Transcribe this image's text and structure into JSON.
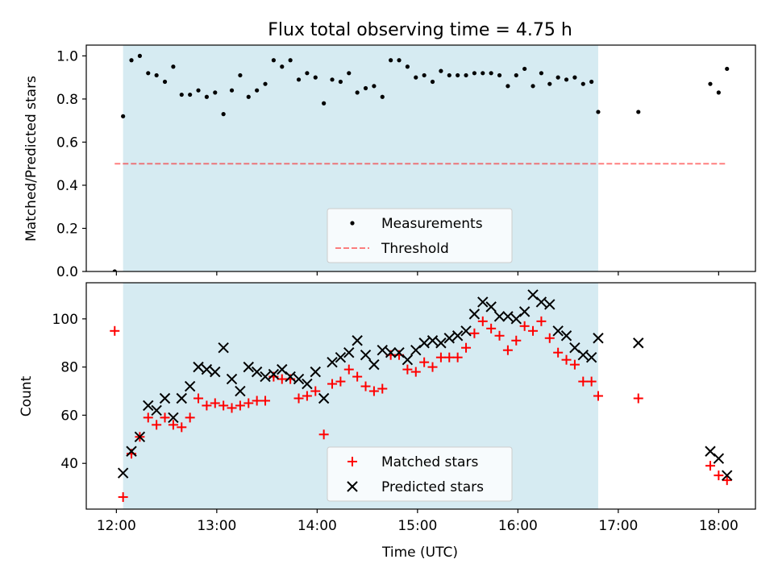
{
  "title": "Flux total observing time = 4.75 h",
  "colors": {
    "shade": "#add8e6",
    "measurements": "#000000",
    "threshold": "#ff0000",
    "matched": "#ff0000",
    "predicted": "#000000"
  },
  "chart_data": [
    {
      "type": "scatter",
      "ylabel": "Matched/Predicted stars",
      "ylim": [
        0,
        1.05
      ],
      "yticks": [
        "0.0",
        "0.2",
        "0.4",
        "0.6",
        "0.8",
        "1.0"
      ],
      "xlim": [
        "11:42",
        "18:22"
      ],
      "xticks": [
        "12:00",
        "13:00",
        "14:00",
        "15:00",
        "16:00",
        "17:00",
        "18:00"
      ],
      "shaded_span": [
        "12:04",
        "16:48"
      ],
      "legend": {
        "placement": "lower center",
        "entries": [
          "Measurements",
          "Threshold"
        ]
      },
      "threshold": {
        "name": "Threshold",
        "y": 0.5,
        "x": [
          "11:59",
          "18:05"
        ]
      },
      "series": [
        {
          "name": "Measurements",
          "marker": "dot",
          "points": [
            [
              "11:59",
              0.0
            ],
            [
              "12:04",
              0.72
            ],
            [
              "12:09",
              0.98
            ],
            [
              "12:14",
              1.0
            ],
            [
              "12:19",
              0.92
            ],
            [
              "12:24",
              0.91
            ],
            [
              "12:29",
              0.88
            ],
            [
              "12:34",
              0.95
            ],
            [
              "12:39",
              0.82
            ],
            [
              "12:44",
              0.82
            ],
            [
              "12:49",
              0.84
            ],
            [
              "12:54",
              0.81
            ],
            [
              "12:59",
              0.83
            ],
            [
              "13:04",
              0.73
            ],
            [
              "13:09",
              0.84
            ],
            [
              "13:14",
              0.91
            ],
            [
              "13:19",
              0.81
            ],
            [
              "13:24",
              0.84
            ],
            [
              "13:29",
              0.87
            ],
            [
              "13:34",
              0.98
            ],
            [
              "13:39",
              0.95
            ],
            [
              "13:44",
              0.98
            ],
            [
              "13:49",
              0.89
            ],
            [
              "13:54",
              0.92
            ],
            [
              "13:59",
              0.9
            ],
            [
              "14:04",
              0.78
            ],
            [
              "14:09",
              0.89
            ],
            [
              "14:14",
              0.88
            ],
            [
              "14:19",
              0.92
            ],
            [
              "14:24",
              0.83
            ],
            [
              "14:29",
              0.85
            ],
            [
              "14:34",
              0.86
            ],
            [
              "14:39",
              0.81
            ],
            [
              "14:44",
              0.98
            ],
            [
              "14:49",
              0.98
            ],
            [
              "14:54",
              0.95
            ],
            [
              "14:59",
              0.9
            ],
            [
              "15:04",
              0.91
            ],
            [
              "15:09",
              0.88
            ],
            [
              "15:14",
              0.93
            ],
            [
              "15:19",
              0.91
            ],
            [
              "15:24",
              0.91
            ],
            [
              "15:29",
              0.91
            ],
            [
              "15:34",
              0.92
            ],
            [
              "15:39",
              0.92
            ],
            [
              "15:44",
              0.92
            ],
            [
              "15:49",
              0.91
            ],
            [
              "15:54",
              0.86
            ],
            [
              "15:59",
              0.91
            ],
            [
              "16:04",
              0.94
            ],
            [
              "16:09",
              0.86
            ],
            [
              "16:14",
              0.92
            ],
            [
              "16:19",
              0.87
            ],
            [
              "16:24",
              0.9
            ],
            [
              "16:29",
              0.89
            ],
            [
              "16:34",
              0.9
            ],
            [
              "16:39",
              0.87
            ],
            [
              "16:44",
              0.88
            ],
            [
              "16:48",
              0.74
            ],
            [
              "17:12",
              0.74
            ],
            [
              "17:55",
              0.87
            ],
            [
              "18:00",
              0.83
            ],
            [
              "18:05",
              0.94
            ]
          ]
        }
      ]
    },
    {
      "type": "scatter",
      "ylabel": "Count",
      "xlabel": "Time (UTC)",
      "ylim": [
        21,
        115
      ],
      "yticks": [
        "40",
        "60",
        "80",
        "100"
      ],
      "xlim": [
        "11:42",
        "18:22"
      ],
      "xticks": [
        "12:00",
        "13:00",
        "14:00",
        "15:00",
        "16:00",
        "17:00",
        "18:00"
      ],
      "shaded_span": [
        "12:04",
        "16:48"
      ],
      "legend": {
        "placement": "lower center",
        "entries": [
          "Matched stars",
          "Predicted stars"
        ]
      },
      "series": [
        {
          "name": "Matched stars",
          "marker": "plus",
          "points": [
            [
              "11:59",
              95
            ],
            [
              "12:04",
              26
            ],
            [
              "12:09",
              44
            ],
            [
              "12:14",
              51
            ],
            [
              "12:19",
              59
            ],
            [
              "12:24",
              56
            ],
            [
              "12:29",
              59
            ],
            [
              "12:34",
              56
            ],
            [
              "12:39",
              55
            ],
            [
              "12:44",
              59
            ],
            [
              "12:49",
              67
            ],
            [
              "12:54",
              64
            ],
            [
              "12:59",
              65
            ],
            [
              "13:04",
              64
            ],
            [
              "13:09",
              63
            ],
            [
              "13:14",
              64
            ],
            [
              "13:19",
              65
            ],
            [
              "13:24",
              66
            ],
            [
              "13:29",
              66
            ],
            [
              "13:34",
              76
            ],
            [
              "13:39",
              75
            ],
            [
              "13:44",
              75
            ],
            [
              "13:49",
              67
            ],
            [
              "13:54",
              68
            ],
            [
              "13:59",
              70
            ],
            [
              "14:04",
              52
            ],
            [
              "14:09",
              73
            ],
            [
              "14:14",
              74
            ],
            [
              "14:19",
              79
            ],
            [
              "14:24",
              76
            ],
            [
              "14:29",
              72
            ],
            [
              "14:34",
              70
            ],
            [
              "14:39",
              71
            ],
            [
              "14:44",
              85
            ],
            [
              "14:49",
              85
            ],
            [
              "14:54",
              79
            ],
            [
              "14:59",
              78
            ],
            [
              "15:04",
              82
            ],
            [
              "15:09",
              80
            ],
            [
              "15:14",
              84
            ],
            [
              "15:19",
              84
            ],
            [
              "15:24",
              84
            ],
            [
              "15:29",
              88
            ],
            [
              "15:34",
              94
            ],
            [
              "15:39",
              99
            ],
            [
              "15:44",
              96
            ],
            [
              "15:49",
              93
            ],
            [
              "15:54",
              87
            ],
            [
              "15:59",
              91
            ],
            [
              "16:04",
              97
            ],
            [
              "16:09",
              95
            ],
            [
              "16:14",
              99
            ],
            [
              "16:19",
              92
            ],
            [
              "16:24",
              86
            ],
            [
              "16:29",
              83
            ],
            [
              "16:34",
              81
            ],
            [
              "16:39",
              74
            ],
            [
              "16:44",
              74
            ],
            [
              "16:48",
              68
            ],
            [
              "17:12",
              67
            ],
            [
              "17:55",
              39
            ],
            [
              "18:00",
              35
            ],
            [
              "18:05",
              33
            ]
          ]
        },
        {
          "name": "Predicted stars",
          "marker": "x",
          "points": [
            [
              "12:04",
              36
            ],
            [
              "12:09",
              45
            ],
            [
              "12:14",
              51
            ],
            [
              "12:19",
              64
            ],
            [
              "12:24",
              62
            ],
            [
              "12:29",
              67
            ],
            [
              "12:34",
              59
            ],
            [
              "12:39",
              67
            ],
            [
              "12:44",
              72
            ],
            [
              "12:49",
              80
            ],
            [
              "12:54",
              79
            ],
            [
              "12:59",
              78
            ],
            [
              "13:04",
              88
            ],
            [
              "13:09",
              75
            ],
            [
              "13:14",
              70
            ],
            [
              "13:19",
              80
            ],
            [
              "13:24",
              78
            ],
            [
              "13:29",
              76
            ],
            [
              "13:34",
              77
            ],
            [
              "13:39",
              79
            ],
            [
              "13:44",
              76
            ],
            [
              "13:49",
              75
            ],
            [
              "13:54",
              73
            ],
            [
              "13:59",
              78
            ],
            [
              "14:04",
              67
            ],
            [
              "14:09",
              82
            ],
            [
              "14:14",
              84
            ],
            [
              "14:19",
              86
            ],
            [
              "14:24",
              91
            ],
            [
              "14:29",
              85
            ],
            [
              "14:34",
              81
            ],
            [
              "14:39",
              87
            ],
            [
              "14:44",
              86
            ],
            [
              "14:49",
              86
            ],
            [
              "14:54",
              83
            ],
            [
              "14:59",
              87
            ],
            [
              "15:04",
              90
            ],
            [
              "15:09",
              91
            ],
            [
              "15:14",
              90
            ],
            [
              "15:19",
              92
            ],
            [
              "15:24",
              93
            ],
            [
              "15:29",
              95
            ],
            [
              "15:34",
              102
            ],
            [
              "15:39",
              107
            ],
            [
              "15:44",
              105
            ],
            [
              "15:49",
              101
            ],
            [
              "15:54",
              101
            ],
            [
              "15:59",
              100
            ],
            [
              "16:04",
              103
            ],
            [
              "16:09",
              110
            ],
            [
              "16:14",
              107
            ],
            [
              "16:19",
              106
            ],
            [
              "16:24",
              95
            ],
            [
              "16:29",
              93
            ],
            [
              "16:34",
              88
            ],
            [
              "16:39",
              85
            ],
            [
              "16:44",
              84
            ],
            [
              "16:48",
              92
            ],
            [
              "17:12",
              90
            ],
            [
              "17:55",
              45
            ],
            [
              "18:00",
              42
            ],
            [
              "18:05",
              35
            ]
          ]
        }
      ]
    }
  ]
}
